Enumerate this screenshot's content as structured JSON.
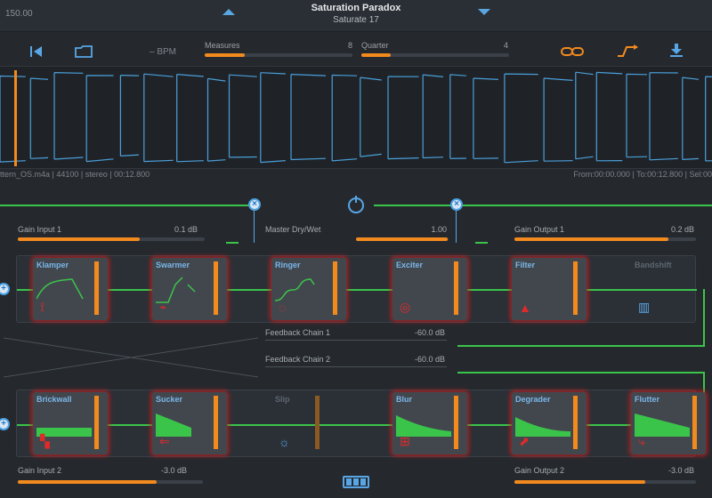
{
  "header": {
    "bpm_value": "150.00",
    "title": "Saturation Paradox",
    "subtitle": "Saturate 17"
  },
  "toolbar": {
    "bpm_label": "BPM",
    "measures": {
      "label": "Measures",
      "value": "8",
      "fraction": 0.27
    },
    "quarter": {
      "label": "Quarter",
      "value": "4",
      "fraction": 0.2
    }
  },
  "waveform": {
    "file_info": "ttern_OS.m4a | 44100 | stereo | 00:12.800",
    "range_info": "From:00:00.000 | To:00:12.800 | Sel:00",
    "playhead_fraction": 0.02
  },
  "mixer": {
    "gain_input_1": {
      "label": "Gain Input 1",
      "value": "0.1 dB",
      "fraction": 0.65
    },
    "master_drywet": {
      "label": "Master Dry/Wet",
      "value": "1.00",
      "fraction": 0.99
    },
    "gain_output_1": {
      "label": "Gain Output 1",
      "value": "0.2 dB",
      "fraction": 0.85
    },
    "feedback_chain_1": {
      "label": "Feedback Chain 1",
      "value": "-60.0 dB"
    },
    "feedback_chain_2": {
      "label": "Feedback Chain 2",
      "value": "-60.0 dB"
    },
    "gain_input_2": {
      "label": "Gain Input 2",
      "value": "-3.0 dB",
      "fraction": 0.75
    },
    "gain_output_2": {
      "label": "Gain Output 2",
      "value": "-3.0 dB",
      "fraction": 0.72
    }
  },
  "chain1": {
    "slots": [
      {
        "name": "Klamper",
        "icon": "clamp-icon"
      },
      {
        "name": "Swarmer",
        "icon": "swarm-icon"
      },
      {
        "name": "Ringer",
        "icon": "ring-icon"
      },
      {
        "name": "Exciter",
        "icon": "exciter-icon"
      },
      {
        "name": "Filter",
        "icon": "filter-icon"
      },
      {
        "name": "Bandshift",
        "icon": "bandshift-icon"
      }
    ]
  },
  "chain2": {
    "slots": [
      {
        "name": "Brickwall",
        "icon": "brickwall-icon"
      },
      {
        "name": "Sucker",
        "icon": "sucker-icon"
      },
      {
        "name": "Slip",
        "icon": "sun-icon"
      },
      {
        "name": "Blur",
        "icon": "blur-icon"
      },
      {
        "name": "Degrader",
        "icon": "degrader-icon"
      },
      {
        "name": "Flutter",
        "icon": "flutter-icon"
      }
    ]
  },
  "colors": {
    "accent_orange": "#f28a1e",
    "accent_blue": "#58a6e6",
    "signal_green": "#3bc44a",
    "active_glow": "#cd1e1e"
  }
}
